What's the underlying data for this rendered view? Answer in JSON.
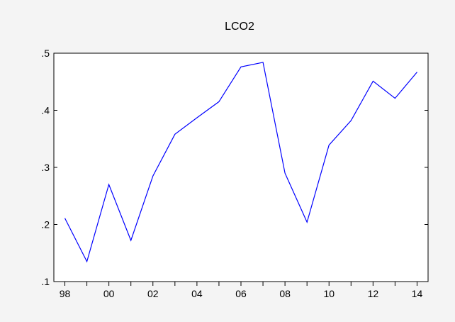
{
  "chart_data": {
    "type": "line",
    "title": "LCO2",
    "xlabel": "",
    "ylabel": "",
    "x": [
      1998,
      1999,
      2000,
      2001,
      2002,
      2003,
      2004,
      2005,
      2006,
      2007,
      2008,
      2009,
      2010,
      2011,
      2012,
      2013,
      2014
    ],
    "x_tick_values": [
      1998,
      2000,
      2002,
      2004,
      2006,
      2008,
      2010,
      2012,
      2014
    ],
    "x_tick_labels": [
      "98",
      "00",
      "02",
      "04",
      "06",
      "08",
      "10",
      "12",
      "14"
    ],
    "xlim": [
      1997.5,
      2014.5
    ],
    "ylim": [
      0.1,
      0.5
    ],
    "y_tick_values": [
      0.1,
      0.2,
      0.3,
      0.4,
      0.5
    ],
    "y_tick_labels": [
      ".1",
      ".2",
      ".3",
      ".4",
      ".5"
    ],
    "grid": false,
    "series": [
      {
        "values": [
          0.211,
          0.135,
          0.27,
          0.172,
          0.285,
          0.358,
          0.387,
          0.415,
          0.476,
          0.484,
          0.29,
          0.204,
          0.339,
          0.382,
          0.451,
          0.421,
          0.467
        ],
        "color": "#0000ff"
      }
    ]
  }
}
